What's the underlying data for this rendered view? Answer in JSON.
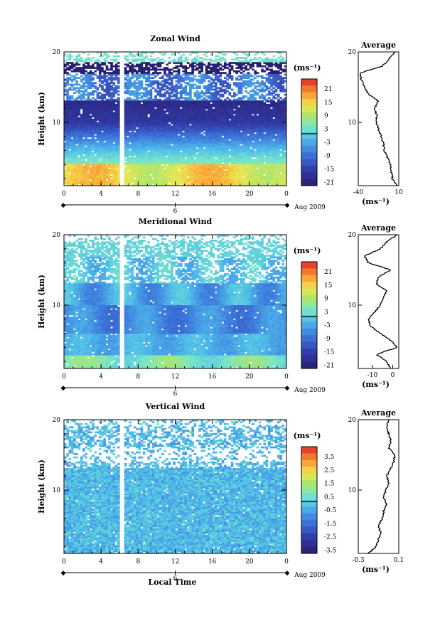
{
  "figure": {
    "month_label": "Aug 2009",
    "day_label": "6",
    "xlabel": "Local Time",
    "ylabel": "Height (km)",
    "avg_title": "Average",
    "unit": "(ms⁻¹)"
  },
  "chart_data": [
    {
      "type": "heatmap",
      "title": "Zonal Wind",
      "xlabel": "",
      "ylabel": "Height (km)",
      "x_ticks": [
        "0",
        "4",
        "8",
        "12",
        "16",
        "20",
        "0"
      ],
      "xlim": [
        0,
        24
      ],
      "y_ticks": [
        "10",
        "20"
      ],
      "ylim": [
        1,
        20
      ],
      "colorbar": {
        "unit": "(ms⁻¹)",
        "ticks": [
          "21",
          "15",
          "9",
          "3",
          "-3",
          "-9",
          "-15",
          "-21"
        ],
        "range": [
          -24,
          24
        ]
      },
      "profile": {
        "title": "Average",
        "x_ticks": [
          "-40",
          "10"
        ],
        "xlim": [
          -40,
          10
        ],
        "xlabel": "(ms⁻¹)",
        "heights": [
          1,
          2,
          3,
          4,
          5,
          6,
          7,
          8,
          9,
          10,
          11,
          12,
          13,
          14,
          15,
          16,
          17,
          18,
          19,
          20
        ],
        "values": [
          8,
          2,
          1,
          0,
          -4,
          -8,
          -9,
          -12,
          -15,
          -18,
          -17,
          -20,
          -15,
          -28,
          -32,
          -36,
          -38,
          -10,
          -2,
          5
        ]
      }
    },
    {
      "type": "heatmap",
      "title": "Meridional Wind",
      "xlabel": "",
      "ylabel": "Height (km)",
      "x_ticks": [
        "0",
        "4",
        "8",
        "12",
        "16",
        "20",
        "0"
      ],
      "xlim": [
        0,
        24
      ],
      "y_ticks": [
        "10",
        "20"
      ],
      "ylim": [
        1,
        20
      ],
      "colorbar": {
        "unit": "(ms⁻¹)",
        "ticks": [
          "21",
          "15",
          "9",
          "3",
          "-3",
          "-9",
          "-15",
          "-21"
        ],
        "range": [
          -24,
          24
        ]
      },
      "profile": {
        "title": "Average",
        "x_ticks": [
          "-10",
          "0"
        ],
        "xlim": [
          -17,
          3
        ],
        "xlabel": "(ms⁻¹)",
        "heights": [
          1,
          2,
          3,
          4,
          5,
          6,
          7,
          8,
          9,
          10,
          11,
          12,
          13,
          14,
          15,
          16,
          17,
          18,
          19,
          20
        ],
        "values": [
          -1,
          -3,
          -8,
          2,
          -1,
          -6,
          -11,
          -12,
          -9,
          -6,
          -5,
          -3,
          -8,
          -7,
          -1,
          -12,
          -14,
          -6,
          -3,
          2
        ]
      }
    },
    {
      "type": "heatmap",
      "title": "Vertical Wind",
      "xlabel": "Local Time",
      "ylabel": "Height (km)",
      "x_ticks": [
        "0",
        "4",
        "8",
        "12",
        "16",
        "20",
        "0"
      ],
      "xlim": [
        0,
        24
      ],
      "y_ticks": [
        "10",
        "20"
      ],
      "ylim": [
        1,
        20
      ],
      "colorbar": {
        "unit": "(ms⁻¹)",
        "ticks": [
          "3.5",
          "2.5",
          "1.5",
          "0.5",
          "-0.5",
          "-1.5",
          "-2.5",
          "-3.5"
        ],
        "range": [
          -4,
          4
        ]
      },
      "profile": {
        "title": "Average",
        "x_ticks": [
          "-0.3",
          "0.1"
        ],
        "xlim": [
          -0.3,
          0.1
        ],
        "xlabel": "(ms⁻¹)",
        "heights": [
          1,
          2,
          3,
          4,
          5,
          6,
          7,
          8,
          9,
          10,
          11,
          12,
          13,
          14,
          15,
          16,
          17,
          18,
          19,
          20
        ],
        "values": [
          -0.2,
          -0.12,
          -0.1,
          -0.08,
          -0.1,
          -0.06,
          -0.05,
          -0.02,
          -0.05,
          -0.03,
          0.0,
          -0.02,
          0.02,
          0.05,
          0.06,
          0.0,
          0.02,
          0.0,
          -0.02,
          0.0
        ]
      }
    }
  ]
}
